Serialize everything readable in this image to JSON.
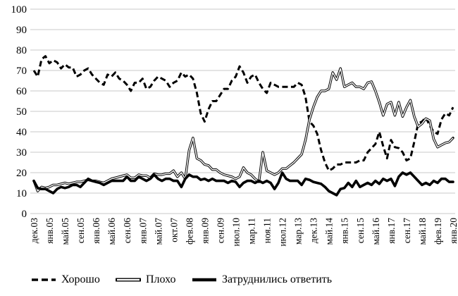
{
  "chart_data": {
    "type": "line",
    "title": "",
    "xlabel": "",
    "ylabel": "",
    "ylim": [
      0,
      100
    ],
    "y_ticks": [
      0,
      10,
      20,
      30,
      40,
      50,
      60,
      70,
      80,
      90,
      100
    ],
    "grid": "horizontal",
    "grid_color": "#c9c9c9",
    "line_color": "#000000",
    "legend_position": "bottom",
    "x_label_every_n_points": 4,
    "x_labels": [
      "дек.03",
      "янв.05",
      "май.05",
      "сен.05",
      "янв.06",
      "май.06",
      "сен.06",
      "янв.07",
      "май.07",
      "окт.07",
      "фев.08",
      "янв.09",
      "сен.09",
      "июл.10",
      "мар.11",
      "ноя.11",
      "июл.12",
      "мар.13",
      "дек.13",
      "май.14",
      "янв.15",
      "сен.15",
      "май.16",
      "янв.17",
      "сен.17",
      "май.18",
      "фев.19",
      "янв.20"
    ],
    "series": [
      {
        "name": "Хорошо",
        "style": "dashed",
        "values": [
          70,
          67,
          75.5,
          77,
          73.5,
          75,
          74,
          71,
          73,
          71.5,
          71.5,
          67,
          68,
          70,
          71,
          68,
          66,
          64,
          63,
          68,
          67,
          69,
          66,
          65,
          63,
          60,
          64,
          64,
          66,
          61,
          62,
          65,
          67,
          66,
          65,
          62,
          64,
          65,
          69,
          67,
          68,
          66,
          59,
          49,
          45,
          51,
          55,
          55,
          58,
          61,
          61,
          65,
          67,
          72,
          69,
          64,
          67,
          68,
          64,
          61,
          59,
          64,
          63,
          62,
          62,
          62,
          62,
          62,
          64,
          63,
          57,
          45,
          43,
          39,
          31,
          25,
          21,
          22,
          24,
          24,
          25,
          25,
          25,
          25,
          26,
          26,
          30,
          32,
          34,
          40,
          33,
          27,
          36,
          32.5,
          32,
          30,
          26,
          27,
          35,
          44,
          45,
          47,
          43,
          40,
          39,
          46,
          49,
          48,
          52
        ]
      },
      {
        "name": "Плохо",
        "style": "double",
        "values": [
          16,
          11,
          13,
          12.5,
          13,
          14,
          14,
          14.5,
          15,
          14.5,
          15,
          15.5,
          15.5,
          16,
          16.5,
          16,
          16,
          15.5,
          15,
          16,
          17,
          17.5,
          18,
          18.5,
          19,
          17.5,
          17.5,
          19,
          18.5,
          18.5,
          17.5,
          19.5,
          19,
          19,
          19.5,
          19.5,
          21,
          18,
          20,
          17,
          31,
          37,
          27,
          26,
          24,
          23.5,
          21.5,
          21.5,
          20,
          19,
          18.5,
          18,
          17,
          18,
          22.5,
          20,
          19,
          17,
          15.5,
          30,
          21,
          20,
          19,
          20,
          22,
          22,
          23.5,
          25,
          27,
          29,
          36,
          46,
          52,
          57,
          60,
          60,
          61,
          69,
          65.5,
          71,
          62,
          63,
          64,
          62,
          62,
          61,
          64,
          64.5,
          60,
          54.5,
          48,
          53.5,
          54.5,
          48,
          54.5,
          47.5,
          52,
          55.5,
          47.5,
          42.5,
          44,
          46.5,
          45.5,
          36.5,
          32.5,
          33.5,
          34.5,
          35,
          37
        ]
      },
      {
        "name": "Затруднились ответить",
        "style": "thick",
        "values": [
          16,
          12.5,
          12,
          12,
          11,
          10,
          12,
          13,
          12.5,
          13,
          14,
          14,
          13,
          15,
          17,
          16,
          15.5,
          15,
          14,
          15,
          16,
          16,
          16,
          16,
          18,
          16,
          16,
          18,
          17,
          16,
          17,
          19,
          17,
          16,
          17,
          17,
          16,
          16,
          13,
          17,
          19,
          18,
          18,
          16.5,
          17,
          16,
          17,
          16,
          16,
          16,
          15,
          16,
          15.5,
          13,
          15,
          16,
          16,
          15,
          16,
          15,
          16,
          15,
          12,
          15,
          20,
          17,
          16,
          16,
          16,
          14,
          17,
          16.5,
          15.5,
          15,
          14.5,
          13,
          11,
          10,
          9,
          12,
          12.5,
          15,
          13,
          16,
          13,
          14,
          15,
          14,
          16,
          14.5,
          17,
          16,
          17,
          13.5,
          18,
          20,
          19,
          20,
          18,
          16,
          14,
          15,
          14,
          16,
          15,
          17,
          17,
          15.5,
          15.5
        ]
      }
    ]
  }
}
